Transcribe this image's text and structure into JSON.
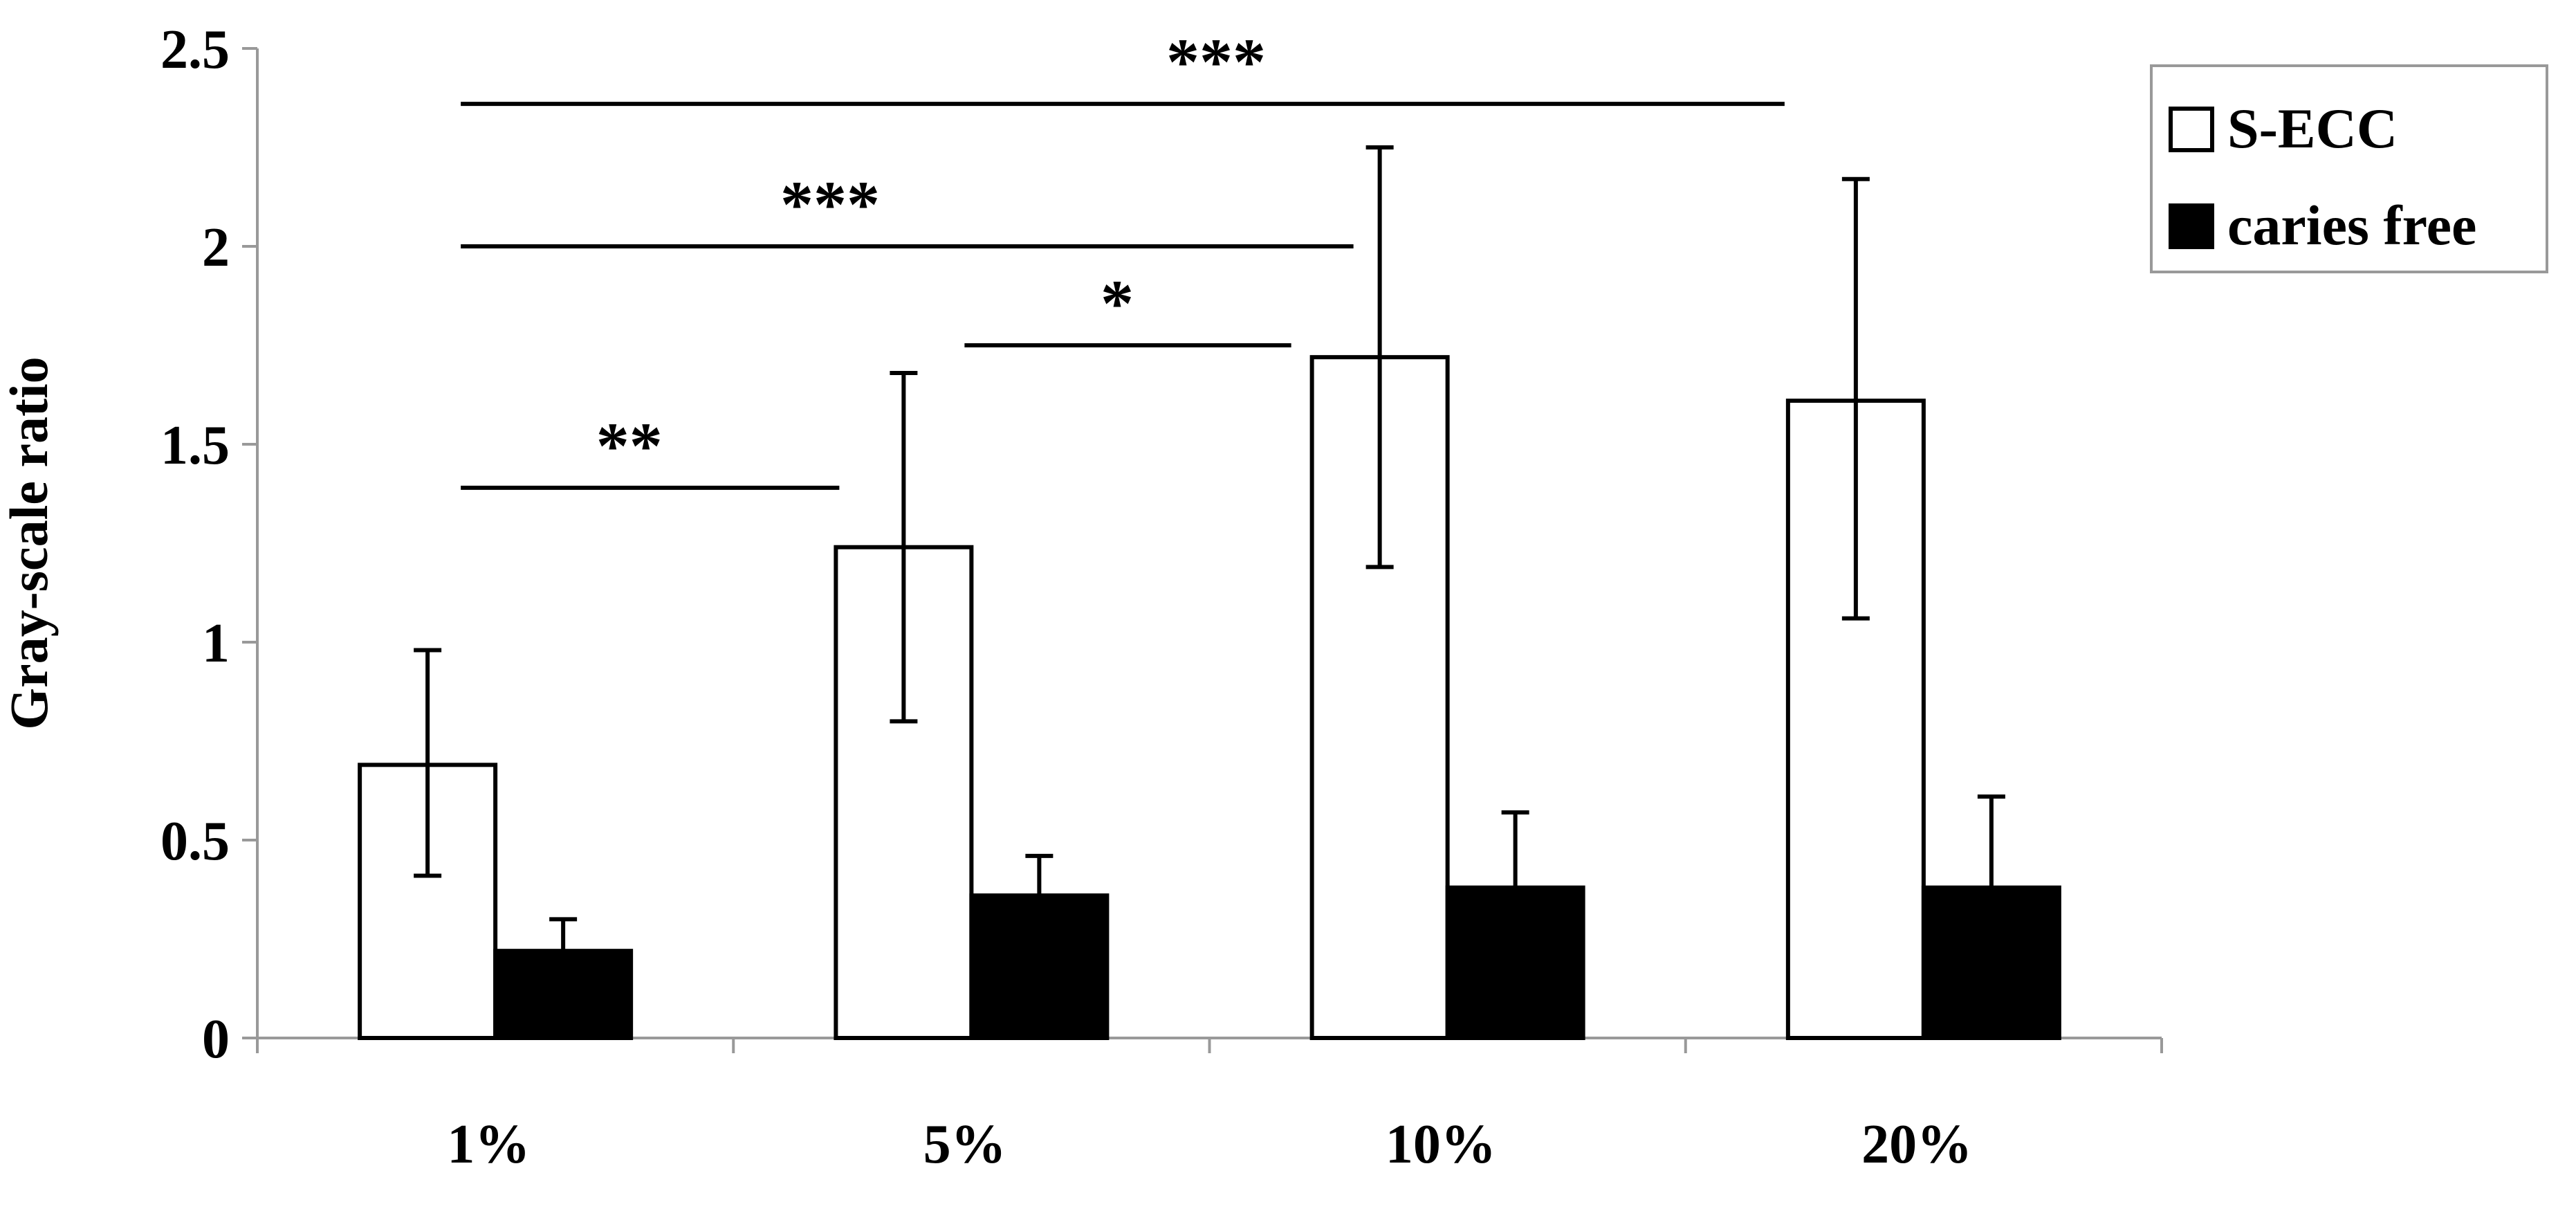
{
  "chart_data": {
    "type": "bar",
    "title": "",
    "xlabel": "",
    "ylabel": "Gray-scale ratio",
    "ylim": [
      0,
      2.5
    ],
    "yticks": [
      "0",
      "0.5",
      "1",
      "1.5",
      "2",
      "2.5"
    ],
    "categories": [
      "1%",
      "5%",
      "10%",
      "20%"
    ],
    "series": [
      {
        "name": "S-ECC",
        "fill": "#ffffff",
        "values": [
          0.69,
          1.24,
          1.72,
          1.61
        ],
        "error_upper": [
          0.98,
          1.68,
          2.25,
          2.17
        ],
        "error_lower": [
          0.41,
          0.8,
          1.19,
          1.06
        ]
      },
      {
        "name": "caries free",
        "fill": "#000000",
        "values": [
          0.22,
          0.36,
          0.38,
          0.38
        ],
        "error_upper": [
          0.3,
          0.46,
          0.57,
          0.61
        ],
        "error_lower": [
          0.22,
          0.36,
          0.38,
          0.38
        ]
      }
    ],
    "legend": {
      "position": "top-right",
      "entries": [
        "S-ECC",
        "caries free"
      ]
    },
    "significance": [
      {
        "from": "1%",
        "to": "10%",
        "level": 2.0,
        "label": "***"
      },
      {
        "from": "1%",
        "to": "20%",
        "level": 2.36,
        "label": "***"
      },
      {
        "from": "5%",
        "to": "10%",
        "level": 1.75,
        "label": "*"
      },
      {
        "from": "1%",
        "to": "5%",
        "level": 1.39,
        "label": "**"
      }
    ],
    "grid": false,
    "colors": {
      "axis": "#999999",
      "ink": "#000000",
      "background": "#ffffff"
    }
  }
}
